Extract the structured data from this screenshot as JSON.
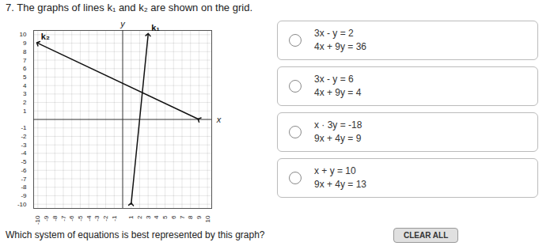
{
  "chart_data": {
    "type": "line",
    "title": "7. The graphs of lines k₁ and k₂ are shown on the grid.",
    "xlabel": "x",
    "ylabel": "y",
    "series": [
      {
        "name": "k₁",
        "color": "#111111",
        "x": [
          1,
          3
        ],
        "values": [
          -10,
          10
        ]
      },
      {
        "name": "k₂",
        "color": "#111111",
        "x": [
          9,
          -10
        ],
        "values": [
          0,
          9
        ]
      }
    ],
    "xlim": [
      -10.5,
      10.5
    ],
    "ylim": [
      -10.5,
      10.5
    ],
    "xticks": [
      -10,
      -9,
      -8,
      -7,
      -6,
      -5,
      -4,
      -3,
      -2,
      -1,
      1,
      2,
      3,
      4,
      5,
      6,
      7,
      8,
      9,
      10
    ],
    "yticks": [
      -10,
      -9,
      -8,
      -7,
      -6,
      -5,
      -4,
      -3,
      -2,
      -1,
      1,
      2,
      3,
      4,
      5,
      6,
      7,
      8,
      9,
      10
    ],
    "grid": true,
    "annotations": [
      "Which system of equations is best represented by this graph?",
      "3x - y = 2",
      "4x + 9y = 36",
      "3x - y = 6",
      "4x + 9y = 4",
      "x · 3y = -18",
      "9x + 4y = 9",
      "x + y = 10",
      "9x + 4y = 13",
      "CLEAR ALL"
    ]
  }
}
